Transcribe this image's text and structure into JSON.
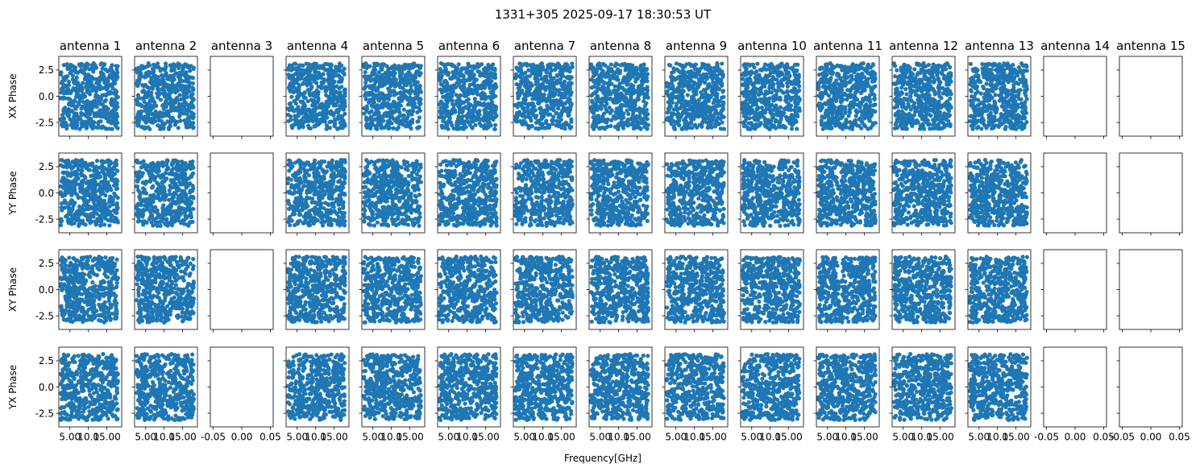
{
  "chart_data": {
    "type": "scatter",
    "title": "1331+305 2025-09-17 18:30:53 UT",
    "xlabel": "Frequency[GHz]",
    "row_labels": [
      "XX Phase",
      "YY Phase",
      "XY Phase",
      "YX Phase"
    ],
    "antennas": [
      "antenna 1",
      "antenna 2",
      "antenna 3",
      "antenna 4",
      "antenna 5",
      "antenna 6",
      "antenna 7",
      "antenna 8",
      "antenna 9",
      "antenna 10",
      "antenna 11",
      "antenna 12",
      "antenna 13",
      "antenna 14",
      "antenna 15"
    ],
    "antennas_with_data": [
      1,
      2,
      4,
      5,
      6,
      7,
      8,
      9,
      10,
      11,
      12,
      13
    ],
    "empty_antennas": [
      3,
      14,
      15
    ],
    "points_per_panel": 500,
    "ylim": [
      -3.8,
      3.8
    ],
    "yticks": [
      "2.5",
      "0.0",
      "-2.5"
    ],
    "yticks_values": [
      2.5,
      0.0,
      -2.5
    ],
    "xlim_data": [
      2.0,
      19.0
    ],
    "xticks_data_labels": [
      "5.00",
      "10.0",
      "15.00"
    ],
    "xticks_data_values": [
      5.0,
      10.0,
      15.0
    ],
    "xlim_empty": [
      -0.055,
      0.055
    ],
    "xticks_empty_labels": [
      "-0.05",
      "0.00",
      "0.05"
    ],
    "xticks_empty_values": [
      -0.05,
      0.0,
      0.05
    ],
    "phase_range": [
      -3.1416,
      3.1416
    ],
    "freq_range": [
      2.5,
      18.0
    ],
    "marker_color": "#1f77b4",
    "grid": false
  }
}
